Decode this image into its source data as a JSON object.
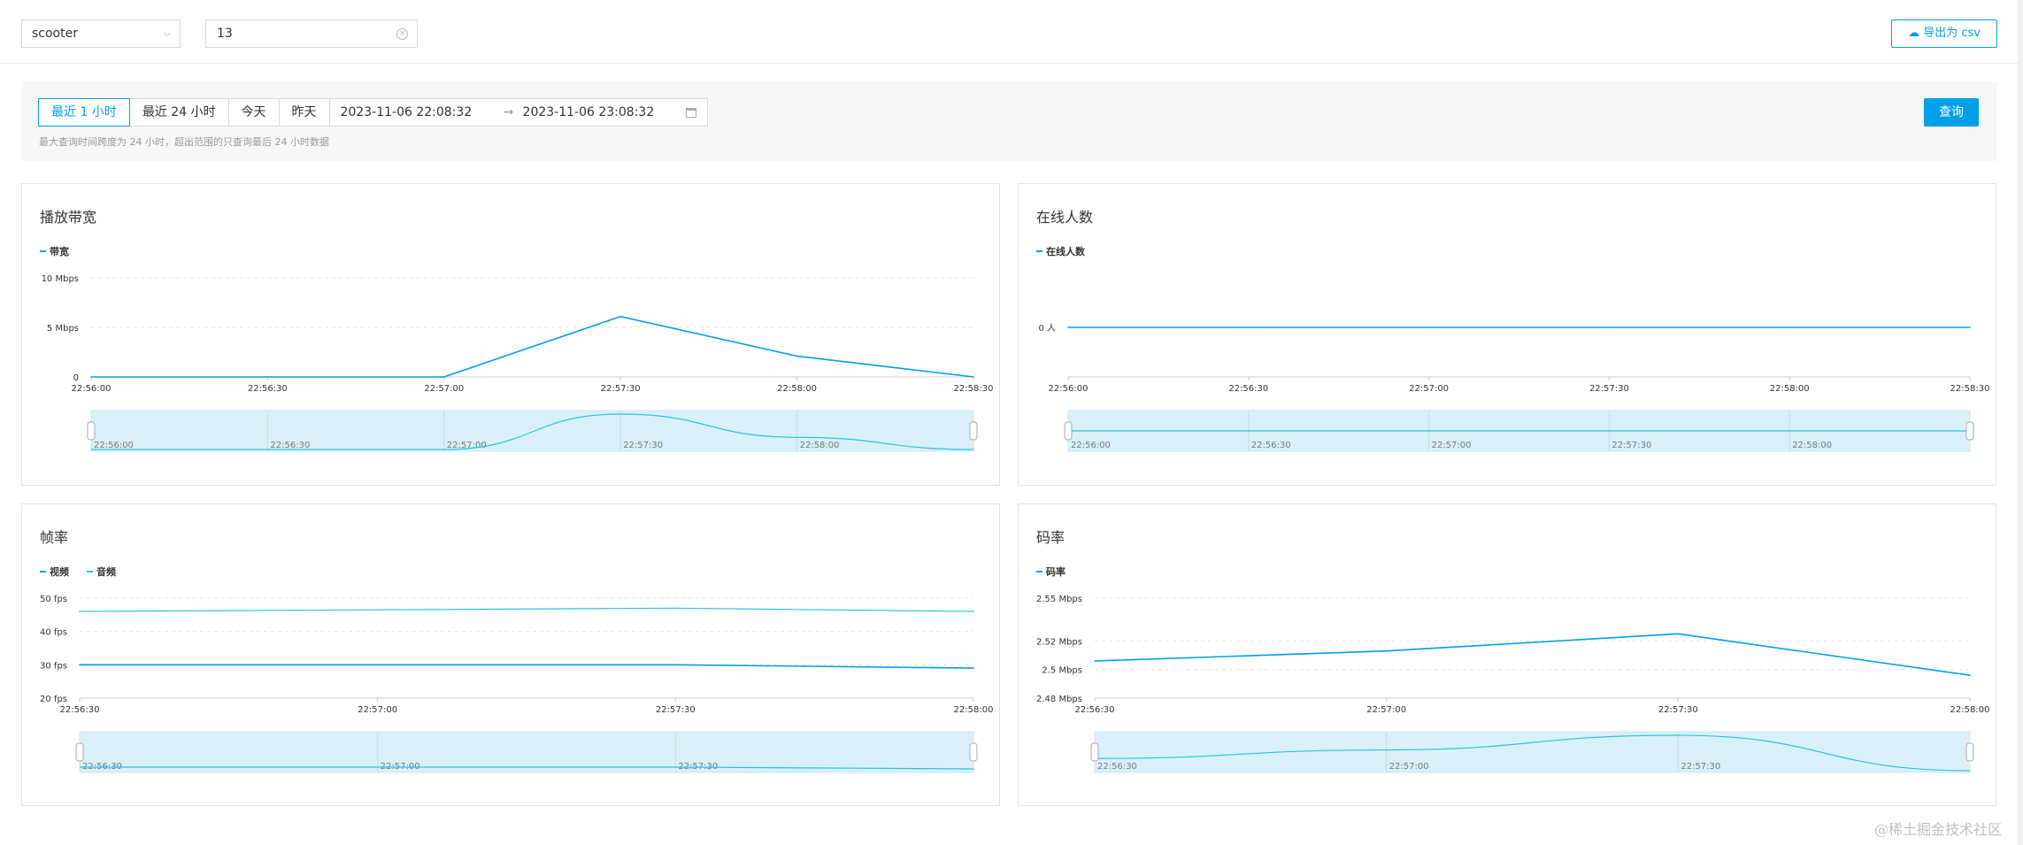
{
  "header": {
    "stream_select": "scooter",
    "id_input": "13",
    "export_label": "导出为 csv"
  },
  "filter": {
    "quick_ranges": [
      "最近 1 小时",
      "最近 24 小时",
      "今天",
      "昨天"
    ],
    "active_range": "最近 1 小时",
    "start_time": "2023-11-06 22:08:32",
    "arrow": "→",
    "end_time": "2023-11-06 23:08:32",
    "hint": "最大查询时间跨度为 24 小时，超出范围的只查询最后 24 小时数据",
    "query_label": "查询"
  },
  "colors": {
    "primary": "#00a0e9",
    "secondary": "#26c6da",
    "grid": "#e6e6e6",
    "axis": "#cccccc",
    "slider_fill": "#d9f0fa"
  },
  "chart_data": [
    {
      "id": "bandwidth",
      "type": "line",
      "title": "播放带宽",
      "series": [
        {
          "name": "带宽",
          "values": [
            0,
            0,
            0,
            6.1,
            2.1,
            0
          ]
        }
      ],
      "x": [
        "22:56:00",
        "22:56:30",
        "22:57:00",
        "22:57:30",
        "22:58:00",
        "22:58:30"
      ],
      "yticks": [
        0,
        5,
        10
      ],
      "ytick_labels": [
        "0",
        "5 Mbps",
        "10 Mbps"
      ],
      "ylim": [
        0,
        10
      ],
      "slider_labels": [
        "22:56:00",
        "22:56:30",
        "22:57:00",
        "22:57:30",
        "22:58:00"
      ]
    },
    {
      "id": "online",
      "type": "line",
      "title": "在线人数",
      "series": [
        {
          "name": "在线人数",
          "values": [
            0,
            0,
            0,
            0,
            0,
            0
          ]
        }
      ],
      "x": [
        "22:56:00",
        "22:56:30",
        "22:57:00",
        "22:57:30",
        "22:58:00",
        "22:58:30"
      ],
      "yticks": [
        0
      ],
      "ytick_labels": [
        "0 人"
      ],
      "ylim": [
        -1,
        1
      ],
      "slider_labels": [
        "22:56:00",
        "22:56:30",
        "22:57:00",
        "22:57:30",
        "22:58:00"
      ]
    },
    {
      "id": "framerate",
      "type": "line",
      "title": "帧率",
      "series": [
        {
          "name": "视频",
          "values": [
            30,
            30,
            30,
            29
          ]
        },
        {
          "name": "音频",
          "values": [
            46,
            46.5,
            47,
            46
          ]
        }
      ],
      "x": [
        "22:56:30",
        "22:57:00",
        "22:57:30",
        "22:58:00"
      ],
      "yticks": [
        20,
        30,
        40,
        50
      ],
      "ytick_labels": [
        "20 fps",
        "30 fps",
        "40 fps",
        "50 fps"
      ],
      "ylim": [
        20,
        50
      ],
      "slider_labels": [
        "22:56:30",
        "22:57:00",
        "22:57:30"
      ]
    },
    {
      "id": "bitrate",
      "type": "line",
      "title": "码率",
      "series": [
        {
          "name": "码率",
          "values": [
            2.506,
            2.513,
            2.525,
            2.496
          ]
        }
      ],
      "x": [
        "22:56:30",
        "22:57:00",
        "22:57:30",
        "22:58:00"
      ],
      "yticks": [
        2.48,
        2.5,
        2.52,
        2.55
      ],
      "ytick_labels": [
        "2.48 Mbps",
        "2.5 Mbps",
        "2.52 Mbps",
        "2.55 Mbps"
      ],
      "ylim": [
        2.48,
        2.55
      ],
      "slider_labels": [
        "22:56:30",
        "22:57:00",
        "22:57:30"
      ]
    }
  ],
  "watermark": "@稀土掘金技术社区"
}
